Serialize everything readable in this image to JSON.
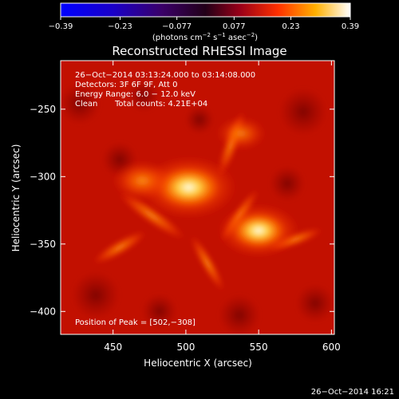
{
  "chart_data": {
    "type": "heatmap",
    "title": "Reconstructed RHESSI Image",
    "xlabel": "Heliocentric X (arcsec)",
    "ylabel": "Heliocentric Y (arcsec)",
    "xlim": [
      414,
      602
    ],
    "ylim": [
      -417,
      -214
    ],
    "x_ticks": [
      450,
      500,
      550,
      600
    ],
    "y_ticks": [
      -250,
      -300,
      -350,
      -400
    ],
    "x_tick_labels": [
      "450",
      "500",
      "550",
      "600"
    ],
    "y_tick_labels": [
      "−250",
      "−300",
      "−350",
      "−400"
    ],
    "colorbar": {
      "ticks": [
        -0.39,
        -0.23,
        -0.077,
        0.077,
        0.23,
        0.39
      ],
      "tick_labels": [
        "−0.39",
        "−0.23",
        "−0.077",
        "0.077",
        "0.23",
        "0.39"
      ],
      "unit_parts": [
        "(photons cm",
        "−2",
        " s",
        "−1",
        " asec",
        "−2",
        ")"
      ]
    },
    "annotations": [
      "26−Oct−2014 03:13:24.000 to 03:14:08.000",
      "Detectors: 3F 6F 9F, Att 0",
      "Energy Range: 6.0 − 12.0 keV",
      "Clean",
      "Total counts: 4.21E+04"
    ],
    "peak_label": "Position of Peak = [502,−308]",
    "sources": [
      {
        "x": 502,
        "y": -308,
        "intensity": 0.39
      },
      {
        "x": 550,
        "y": -340,
        "intensity": 0.3
      },
      {
        "x": 470,
        "y": -303,
        "intensity": 0.16
      },
      {
        "x": 538,
        "y": -268,
        "intensity": 0.1
      }
    ]
  },
  "footer": {
    "timestamp": "26−Oct−2014 16:21"
  }
}
